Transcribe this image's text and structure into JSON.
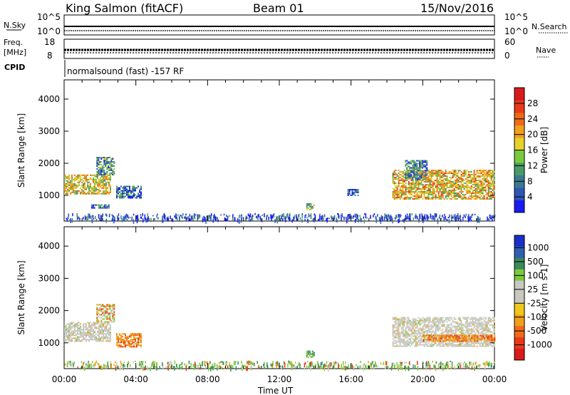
{
  "header": {
    "station": "King Salmon (fitACF)",
    "beam": "Beam 01",
    "date": "15/Nov/2016"
  },
  "status_panels": {
    "nsky_label": "N.Sky",
    "nsearch_label": "N.Search",
    "nsky_ticks": [
      "10^5",
      "10^0"
    ],
    "nsearch_ticks": [
      "10^5",
      "10^0"
    ],
    "freq_label": "Freq.",
    "freq_unit": "[MHz]",
    "freq_ticks": [
      "18",
      "8"
    ],
    "nave_label": "Nave",
    "nave_ticks": [
      "60",
      "0"
    ],
    "cpid_label": "CPID",
    "cpid_text": "normalsound (fast) -157 RF"
  },
  "chart_data": [
    {
      "type": "heatmap",
      "name": "power",
      "ylabel": "Slant Range [km]",
      "ylim": [
        200,
        4600
      ],
      "y_ticks": [
        1000,
        2000,
        3000,
        4000
      ],
      "xlim": [
        0,
        24
      ],
      "colorbar": {
        "label": "Power [dB]",
        "range": [
          0,
          32
        ],
        "ticks": [
          "4",
          "8",
          "12",
          "16",
          "20",
          "24",
          "28"
        ],
        "colors": [
          "#1a1af5",
          "#2f55b5",
          "#3a7a8f",
          "#4a9a6a",
          "#7acb3c",
          "#e6d22a",
          "#f0a01c",
          "#f06a18",
          "#e83a1a",
          "#d91a1a"
        ]
      },
      "regions": [
        {
          "t0": 0.0,
          "t1": 2.6,
          "r0": 1050,
          "r1": 1650,
          "level": 0.55
        },
        {
          "t0": 1.8,
          "t1": 2.8,
          "r0": 1650,
          "r1": 2200,
          "level": 0.3
        },
        {
          "t0": 1.5,
          "t1": 2.5,
          "r0": 620,
          "r1": 720,
          "level": 0.2
        },
        {
          "t0": 2.9,
          "t1": 4.3,
          "r0": 900,
          "r1": 1300,
          "level": 0.2
        },
        {
          "t0": 13.5,
          "t1": 13.9,
          "r0": 580,
          "r1": 760,
          "level": 0.45
        },
        {
          "t0": 15.8,
          "t1": 16.4,
          "r0": 1000,
          "r1": 1200,
          "level": 0.15
        },
        {
          "t0": 18.3,
          "t1": 24.0,
          "r0": 900,
          "r1": 1800,
          "level": 0.6
        },
        {
          "t0": 19.0,
          "t1": 20.2,
          "r0": 1500,
          "r1": 2100,
          "level": 0.25
        }
      ]
    },
    {
      "type": "heatmap",
      "name": "velocity",
      "ylabel": "Slant Range [km]",
      "xlabel": "Time UT",
      "ylim": [
        200,
        4600
      ],
      "y_ticks": [
        1000,
        2000,
        3000,
        4000
      ],
      "xlim": [
        0,
        24
      ],
      "x_tick_labels": [
        "00:00",
        "04:00",
        "08:00",
        "12:00",
        "16:00",
        "20:00",
        "00:00"
      ],
      "colorbar": {
        "label": "Velocity [m s-1]",
        "ticks": [
          "1000",
          "500",
          "100",
          "25",
          "-25",
          "-100",
          "-500",
          "-1000"
        ],
        "colors": [
          "#1a2fc8",
          "#2f5fb0",
          "#3a8a5a",
          "#7acb3c",
          "#c8c8c0",
          "#c8c8c0",
          "#f0c81c",
          "#f0a01c",
          "#f06a18",
          "#e83a1a",
          "#d91a1a"
        ]
      },
      "regions": [
        {
          "t0": 0.0,
          "t1": 2.6,
          "r0": 1050,
          "r1": 1650,
          "vel": "ground"
        },
        {
          "t0": 1.8,
          "t1": 2.8,
          "r0": 1650,
          "r1": 2200,
          "vel": "mixed"
        },
        {
          "t0": 2.9,
          "t1": 4.3,
          "r0": 900,
          "r1": 1300,
          "vel": "neg"
        },
        {
          "t0": 13.5,
          "t1": 13.9,
          "r0": 580,
          "r1": 760,
          "vel": "pos"
        },
        {
          "t0": 18.3,
          "t1": 24.0,
          "r0": 900,
          "r1": 1800,
          "vel": "ground"
        },
        {
          "t0": 20.0,
          "t1": 24.0,
          "r0": 1050,
          "r1": 1250,
          "vel": "neg"
        }
      ]
    }
  ]
}
